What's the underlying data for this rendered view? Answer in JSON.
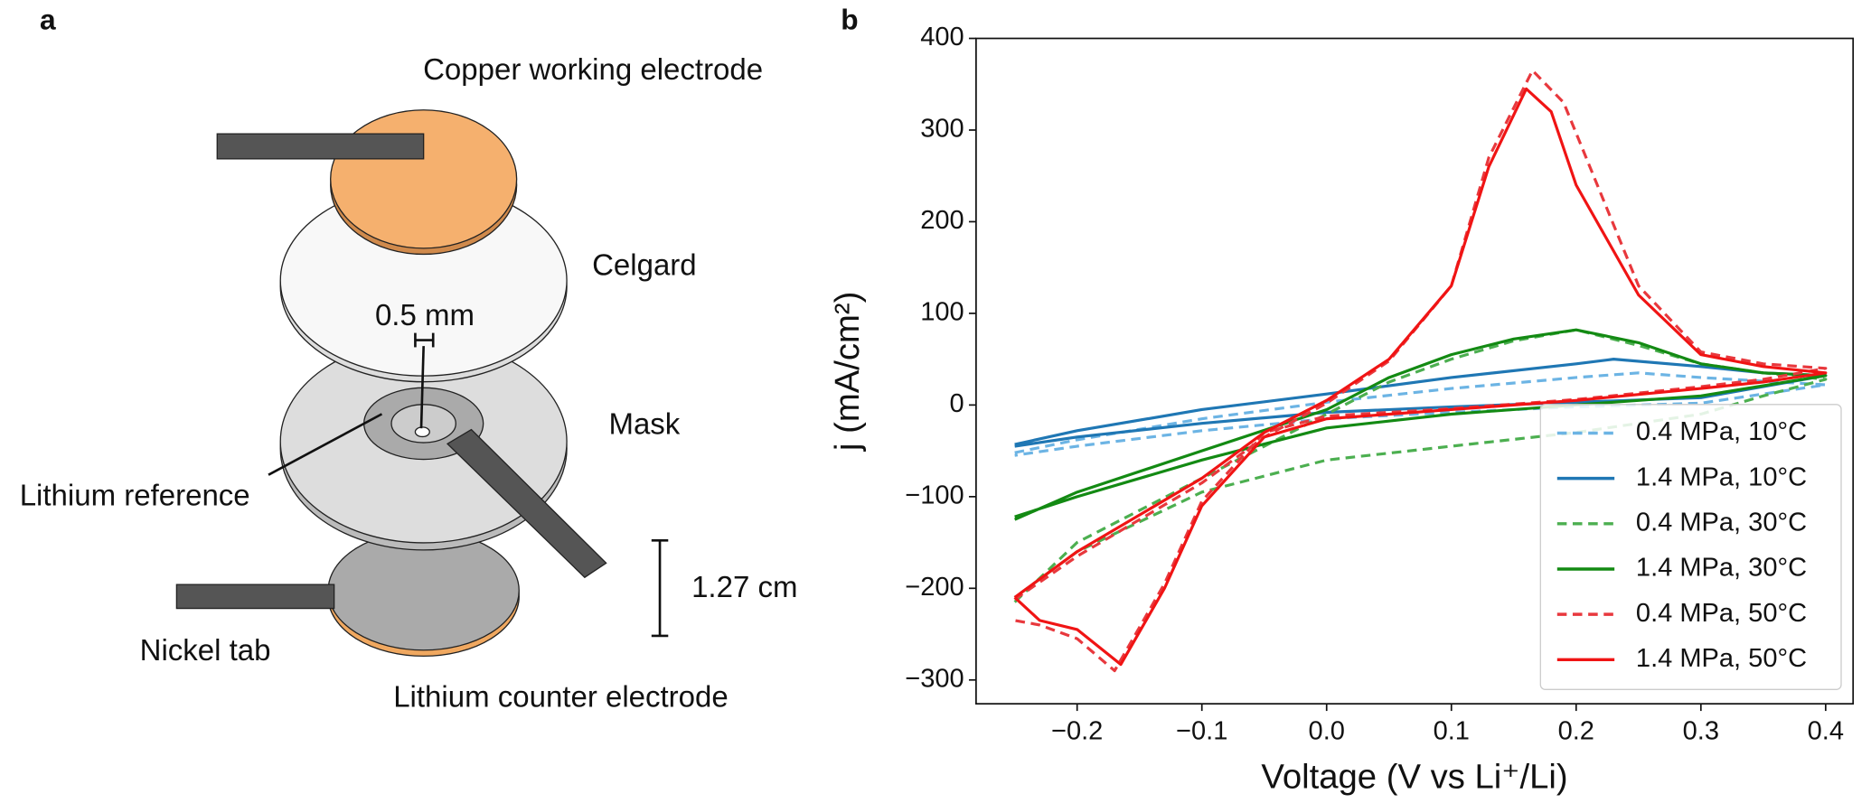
{
  "panel_a": {
    "panel_label": "a",
    "labels": {
      "copper": "Copper working electrode",
      "celgard": "Celgard",
      "hole": "0.5 mm",
      "mask": "Mask",
      "reference": "Lithium reference",
      "size": "1.27 cm",
      "tab": "Nickel tab",
      "counter": "Lithium counter electrode"
    }
  },
  "chart_data": {
    "type": "line",
    "panel_label": "b",
    "x_label": "Voltage (V vs Li⁺/Li)",
    "y_label": "j (mA/cm²)",
    "xlim": [
      -0.281,
      0.422
    ],
    "ylim": [
      -326,
      400
    ],
    "xticks": [
      {
        "value": -0.2,
        "label": "−0.2"
      },
      {
        "value": -0.1,
        "label": "−0.1"
      },
      {
        "value": 0,
        "label": "0.0"
      },
      0.1,
      0.2,
      0.3,
      0.4
    ],
    "yticks": [
      {
        "value": -300,
        "label": "−300"
      },
      {
        "value": -200,
        "label": "−200"
      },
      {
        "value": -100,
        "label": "−100"
      },
      0,
      100,
      200,
      300,
      400
    ],
    "legend": "lower right",
    "series": [
      {
        "name": "0.4 MPa, 10°C",
        "color": "#6cb4e4",
        "style": "dashed",
        "x": [
          -0.25,
          -0.2,
          -0.1,
          0,
          0.1,
          0.2,
          0.25,
          0.3,
          0.4,
          0.3,
          0.2,
          0.1,
          0,
          -0.1,
          -0.2,
          -0.25
        ],
        "values": [
          -52,
          -38,
          -15,
          3,
          18,
          30,
          35,
          30,
          22,
          2,
          -2,
          -8,
          -15,
          -28,
          -45,
          -55
        ]
      },
      {
        "name": "1.4 MPa, 10°C",
        "color": "#1f77b4",
        "style": "solid",
        "x": [
          -0.25,
          -0.2,
          -0.1,
          0,
          0.1,
          0.2,
          0.23,
          0.3,
          0.35,
          0.4,
          0.3,
          0.2,
          0.1,
          0,
          -0.1,
          -0.2,
          -0.25
        ],
        "values": [
          -43,
          -28,
          -5,
          12,
          30,
          45,
          50,
          42,
          35,
          32,
          8,
          3,
          -2,
          -8,
          -20,
          -35,
          -45
        ]
      },
      {
        "name": "0.4 MPa, 30°C",
        "color": "#4caf50",
        "style": "dashed",
        "x": [
          -0.25,
          -0.2,
          -0.1,
          0,
          0.05,
          0.1,
          0.15,
          0.2,
          0.25,
          0.3,
          0.35,
          0.4,
          0.35,
          0.3,
          0.2,
          0.1,
          0,
          -0.1,
          -0.2,
          -0.25
        ],
        "values": [
          -215,
          -150,
          -80,
          -10,
          25,
          50,
          70,
          82,
          65,
          45,
          35,
          28,
          10,
          -10,
          -30,
          -45,
          -60,
          -95,
          -160,
          -210
        ]
      },
      {
        "name": "1.4 MPa, 30°C",
        "color": "#138a13",
        "style": "solid",
        "x": [
          -0.25,
          -0.2,
          -0.1,
          0,
          0.05,
          0.1,
          0.15,
          0.2,
          0.25,
          0.3,
          0.35,
          0.4,
          0.3,
          0.2,
          0.1,
          0,
          -0.1,
          -0.2,
          -0.25
        ],
        "values": [
          -125,
          -95,
          -50,
          -5,
          30,
          55,
          72,
          82,
          68,
          45,
          35,
          32,
          10,
          0,
          -10,
          -25,
          -60,
          -100,
          -122
        ]
      },
      {
        "name": "0.4 MPa, 50°C",
        "color": "#e8383d",
        "style": "dashed",
        "x": [
          -0.25,
          -0.2,
          -0.1,
          -0.05,
          0,
          0.05,
          0.1,
          0.13,
          0.165,
          0.19,
          0.22,
          0.25,
          0.3,
          0.35,
          0.4,
          0.35,
          0.3,
          0.2,
          0.1,
          0,
          -0.05,
          -0.1,
          -0.13,
          -0.17,
          -0.2,
          -0.23,
          -0.25
        ],
        "values": [
          -212,
          -165,
          -85,
          -35,
          2,
          48,
          130,
          270,
          365,
          330,
          230,
          130,
          58,
          45,
          40,
          28,
          20,
          6,
          -4,
          -12,
          -30,
          -105,
          -195,
          -290,
          -255,
          -240,
          -235
        ]
      },
      {
        "name": "1.4 MPa, 50°C",
        "color": "#f01414",
        "style": "solid",
        "x": [
          -0.25,
          -0.2,
          -0.1,
          -0.05,
          0,
          0.05,
          0.1,
          0.13,
          0.16,
          0.18,
          0.2,
          0.25,
          0.3,
          0.35,
          0.4,
          0.35,
          0.3,
          0.2,
          0.1,
          0,
          -0.05,
          -0.1,
          -0.13,
          -0.165,
          -0.2,
          -0.23,
          -0.25
        ],
        "values": [
          -210,
          -160,
          -80,
          -30,
          5,
          50,
          130,
          260,
          345,
          320,
          240,
          120,
          55,
          42,
          35,
          25,
          18,
          5,
          -5,
          -15,
          -35,
          -110,
          -200,
          -283,
          -245,
          -235,
          -210
        ]
      }
    ]
  }
}
